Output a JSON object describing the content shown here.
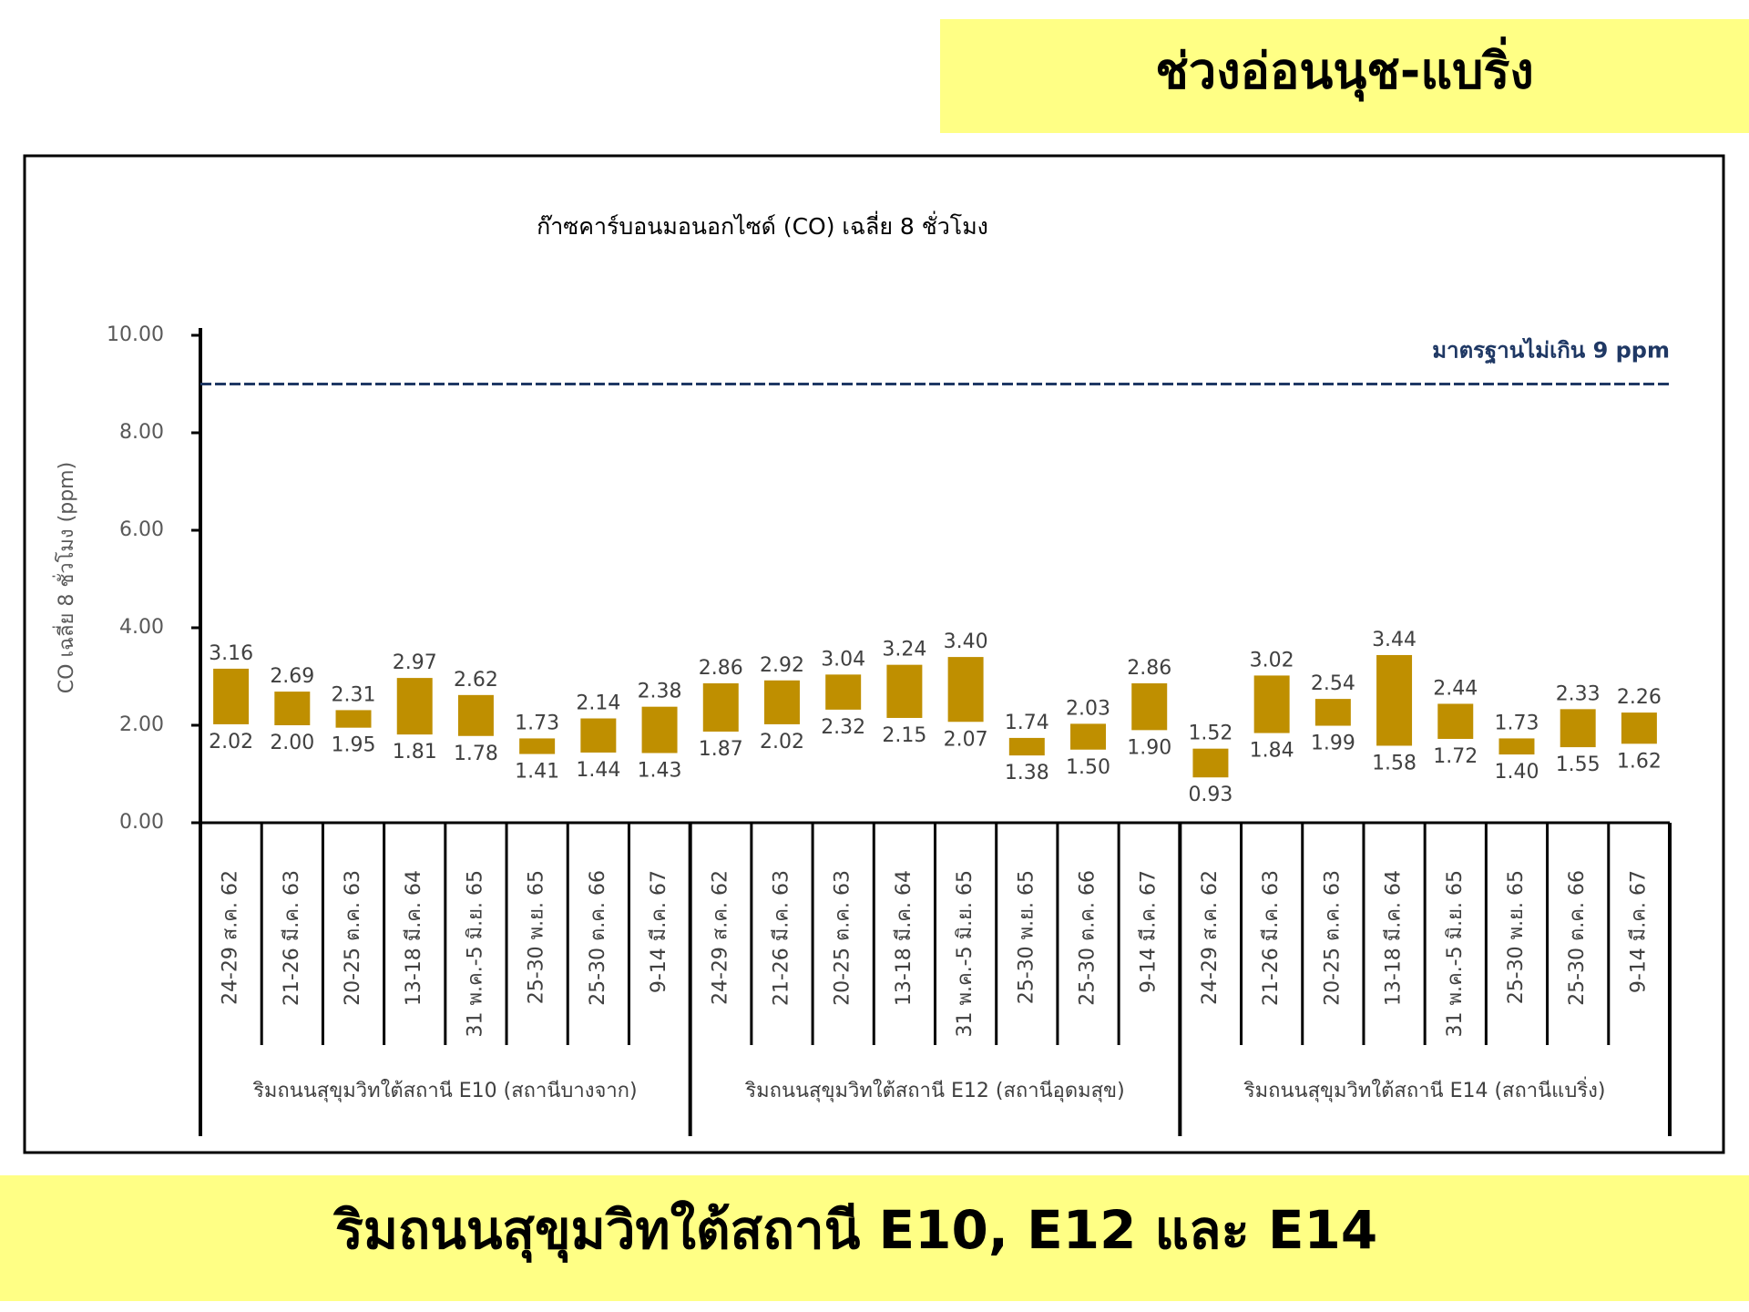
{
  "header": {
    "title": "ช่วงอ่อนนุช-แบริ่ง"
  },
  "footer": {
    "title": "ริมถนนสุขุมวิทใต้สถานี E10, E12 และ E14"
  },
  "chart_data": {
    "type": "range-bar",
    "title": "ก๊าซคาร์บอนมอนอกไซด์ (CO) เฉลี่ย 8 ชั่วโมง",
    "y_label": "CO เฉลี่ย 8 ชั่วโมง (ppm)",
    "color": "#bf8f00",
    "ylim": [
      0,
      10
    ],
    "yticks": [
      {
        "value": 0,
        "label": "0.00"
      },
      {
        "value": 2,
        "label": "2.00"
      },
      {
        "value": 4,
        "label": "4.00"
      },
      {
        "value": 6,
        "label": "6.00"
      },
      {
        "value": 8,
        "label": "8.00"
      },
      {
        "value": 10,
        "label": "10.00"
      }
    ],
    "threshold": {
      "value": 9,
      "label": "มาตรฐานไม่เกิน 9 ppm",
      "color": "#1f3864"
    },
    "groups": [
      {
        "label": "ริมถนนสุขุมวิทใต้สถานี E10 (สถานีบางจาก)",
        "categories": [
          "24-29 ส.ค. 62",
          "21-26 มี.ค. 63",
          "20-25 ต.ค. 63",
          "13-18 มี.ค. 64",
          "31 พ.ค.-5 มิ.ย. 65",
          "25-30 พ.ย. 65",
          "25-30 ต.ค. 66",
          "9-14 มี.ค. 67"
        ]
      },
      {
        "label": "ริมถนนสุขุมวิทใต้สถานี E12 (สถานีอุดมสุข)",
        "categories": [
          "24-29 ส.ค. 62",
          "21-26 มี.ค. 63",
          "20-25 ต.ค. 63",
          "13-18 มี.ค. 64",
          "31 พ.ค.-5 มิ.ย. 65",
          "25-30 พ.ย. 65",
          "25-30 ต.ค. 66",
          "9-14 มี.ค. 67"
        ]
      },
      {
        "label": "ริมถนนสุขุมวิทใต้สถานี E14 (สถานีแบริ่ง)",
        "categories": [
          "24-29 ส.ค. 62",
          "21-26 มี.ค. 63",
          "20-25 ต.ค. 63",
          "13-18 มี.ค. 64",
          "31 พ.ค.-5 มิ.ย. 65",
          "25-30 พ.ย. 65",
          "25-30 ต.ค. 66",
          "9-14 มี.ค. 67"
        ]
      }
    ],
    "high": {
      "values": [
        3.16,
        2.69,
        2.31,
        2.97,
        2.62,
        1.73,
        2.14,
        2.38,
        2.86,
        2.92,
        3.04,
        3.24,
        3.4,
        1.74,
        2.03,
        2.86,
        1.52,
        3.02,
        2.54,
        3.44,
        2.44,
        1.73,
        2.33,
        2.26
      ],
      "value_labels": [
        "3.16",
        "2.69",
        "2.31",
        "2.97",
        "2.62",
        "1.73",
        "2.14",
        "2.38",
        "2.86",
        "2.92",
        "3.04",
        "3.24",
        "3.40",
        "1.74",
        "2.03",
        "2.86",
        "1.52",
        "3.02",
        "2.54",
        "3.44",
        "2.44",
        "1.73",
        "2.33",
        "2.26"
      ]
    },
    "low": {
      "values": [
        2.02,
        2.0,
        1.95,
        1.81,
        1.78,
        1.41,
        1.44,
        1.43,
        1.87,
        2.02,
        2.32,
        2.15,
        2.07,
        1.38,
        1.5,
        1.9,
        0.93,
        1.84,
        1.99,
        1.58,
        1.72,
        1.4,
        1.55,
        1.62
      ],
      "value_labels": [
        "2.02",
        "2.00",
        "1.95",
        "1.81",
        "1.78",
        "1.41",
        "1.44",
        "1.43",
        "1.87",
        "2.02",
        "2.32",
        "2.15",
        "2.07",
        "1.38",
        "1.50",
        "1.90",
        "0.93",
        "1.84",
        "1.99",
        "1.58",
        "1.72",
        "1.40",
        "1.55",
        "1.62"
      ]
    }
  }
}
